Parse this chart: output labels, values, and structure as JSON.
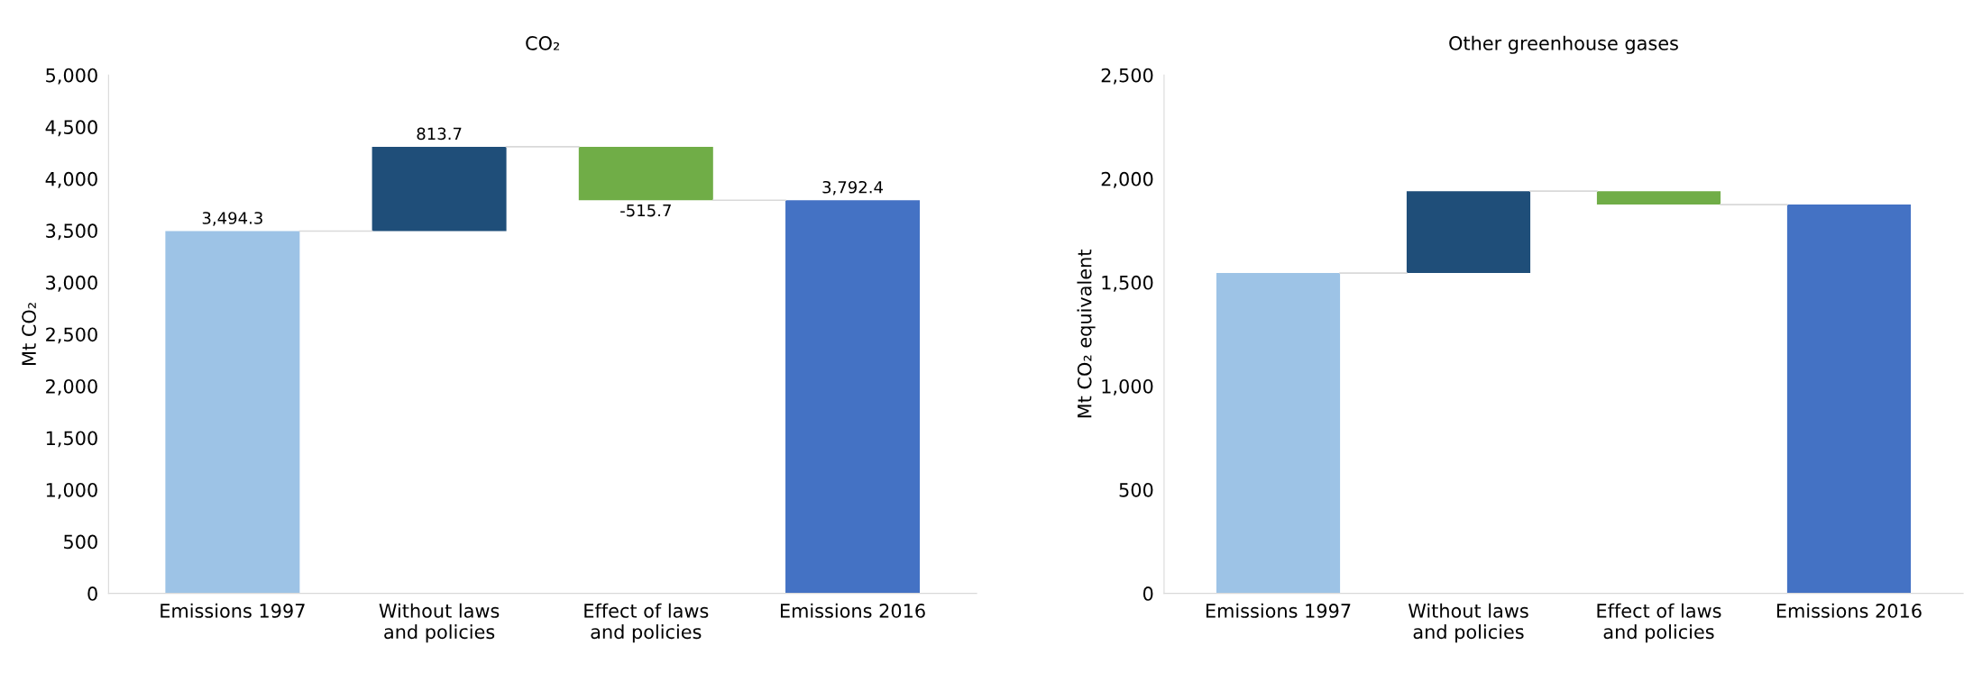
{
  "chart_data": [
    {
      "type": "bar",
      "title": "CO₂",
      "ylabel": "Mt CO₂",
      "categories": [
        "Emissions 1997",
        "Without laws\nand policies",
        "Effect of laws\nand policies",
        "Emissions 2016"
      ],
      "values": [
        3494.3,
        813.7,
        -515.7,
        3792.4
      ],
      "base": [
        0,
        3494.3,
        4308,
        0
      ],
      "colors": [
        "#9dc3e6",
        "#1f4e79",
        "#70ad47",
        "#4472c4"
      ],
      "value_labels": [
        "3,494.3",
        "813.7",
        "-515.7",
        "3,792.4"
      ],
      "ylim": [
        0,
        5000
      ],
      "yticks": [
        {
          "value": 0,
          "label": "0"
        },
        {
          "value": 500,
          "label": "500"
        },
        {
          "value": 1000,
          "label": "1,000"
        },
        {
          "value": 1500,
          "label": "1,500"
        },
        {
          "value": 2000,
          "label": "2,000"
        },
        {
          "value": 2500,
          "label": "2,500"
        },
        {
          "value": 3000,
          "label": "3,000"
        },
        {
          "value": 3500,
          "label": "3,500"
        },
        {
          "value": 4000,
          "label": "4,000"
        },
        {
          "value": 4500,
          "label": "4,500"
        },
        {
          "value": 5000,
          "label": "5,000"
        }
      ],
      "grid": false,
      "legend": false
    },
    {
      "type": "bar",
      "title": "Other greenhouse gases",
      "ylabel": "Mt CO₂ equivalent",
      "categories": [
        "Emissions 1997",
        "Without laws\nand policies",
        "Effect of laws\nand policies",
        "Emissions 2016"
      ],
      "values": [
        1545,
        395,
        -65,
        1875
      ],
      "base": [
        0,
        1545,
        1940,
        0
      ],
      "colors": [
        "#9dc3e6",
        "#1f4e79",
        "#70ad47",
        "#4472c4"
      ],
      "ylim": [
        0,
        2500
      ],
      "yticks": [
        {
          "value": 0,
          "label": "0"
        },
        {
          "value": 500,
          "label": "500"
        },
        {
          "value": 1000,
          "label": "1,000"
        },
        {
          "value": 1500,
          "label": "1,500"
        },
        {
          "value": 2000,
          "label": "2,000"
        },
        {
          "value": 2500,
          "label": "2,500"
        }
      ],
      "grid": false,
      "legend": false
    }
  ]
}
